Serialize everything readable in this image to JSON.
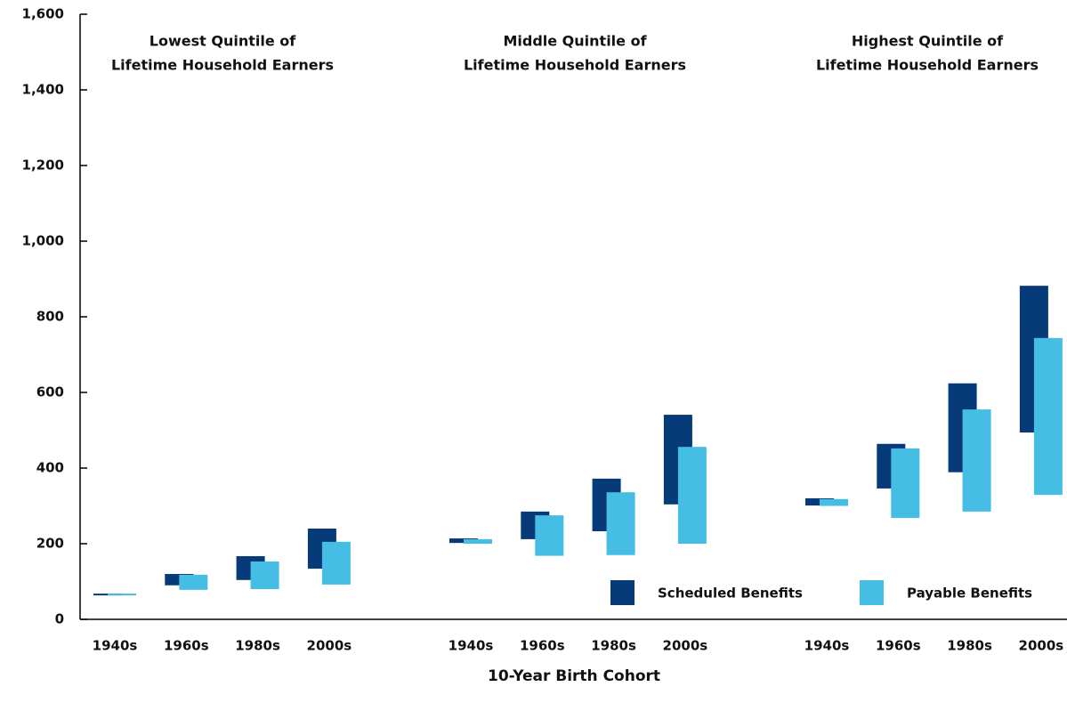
{
  "chart_data": {
    "type": "floating-bar",
    "x_label": "10-Year Birth Cohort",
    "groups": [
      {
        "title": [
          "Lowest Quintile of",
          "Lifetime Household Earners"
        ]
      },
      {
        "title": [
          "Middle Quintile of",
          "Lifetime Household Earners"
        ]
      },
      {
        "title": [
          "Highest Quintile of",
          "Lifetime Household Earners"
        ]
      }
    ],
    "categories": [
      "1940s",
      "1960s",
      "1980s",
      "2000s",
      "1940s",
      "1960s",
      "1980s",
      "2000s",
      "1940s",
      "1960s",
      "1980s",
      "2000s"
    ],
    "series": [
      {
        "name": "Scheduled Benefits",
        "color": "#063a78",
        "low": [
          65,
          90,
          104,
          134,
          202,
          212,
          233,
          304,
          301,
          346,
          389,
          494
        ],
        "high": [
          68,
          120,
          167,
          240,
          214,
          285,
          372,
          541,
          320,
          464,
          624,
          882
        ]
      },
      {
        "name": "Payable Benefits",
        "color": "#45bde4",
        "low": [
          65,
          78,
          80,
          92,
          200,
          168,
          170,
          200,
          300,
          268,
          285,
          329
        ],
        "high": [
          68,
          118,
          153,
          205,
          212,
          275,
          336,
          456,
          318,
          452,
          555,
          744
        ]
      }
    ],
    "ylim": [
      0,
      1600
    ],
    "yticks": [
      0,
      200,
      400,
      600,
      800,
      {
        "value": 1000,
        "label": "1,000"
      },
      {
        "value": 1200,
        "label": "1,200"
      },
      {
        "value": 1400,
        "label": "1,400"
      },
      {
        "value": 1600,
        "label": "1,600"
      }
    ],
    "legend": "lower right"
  }
}
